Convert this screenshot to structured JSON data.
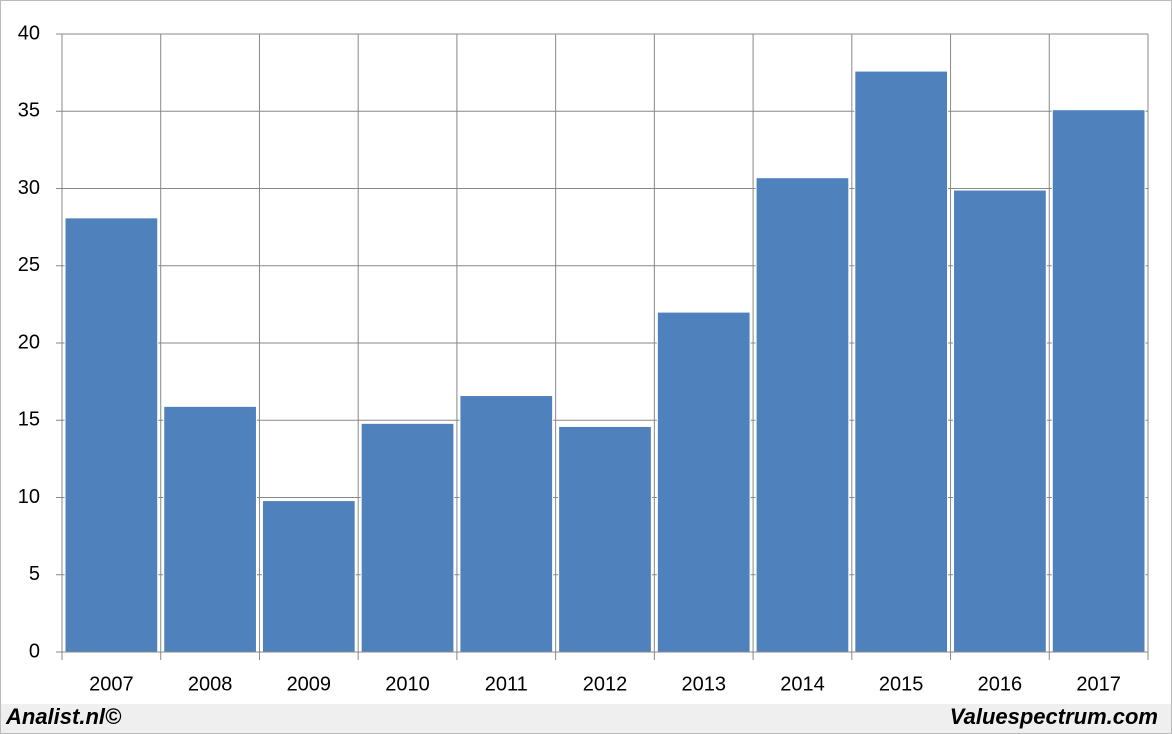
{
  "chart_data": {
    "type": "bar",
    "categories": [
      "2007",
      "2008",
      "2009",
      "2010",
      "2011",
      "2012",
      "2013",
      "2014",
      "2015",
      "2016",
      "2017"
    ],
    "values": [
      28.1,
      15.9,
      9.8,
      14.8,
      16.6,
      14.6,
      22.0,
      30.7,
      37.6,
      29.9,
      35.1
    ],
    "color": "#4f81bd",
    "ylim": [
      0,
      40
    ],
    "yticks": [
      0,
      5,
      10,
      15,
      20,
      25,
      30,
      35,
      40
    ],
    "grid": true
  },
  "footer": {
    "left": "Analist.nl©",
    "right": "Valuespectrum.com"
  }
}
